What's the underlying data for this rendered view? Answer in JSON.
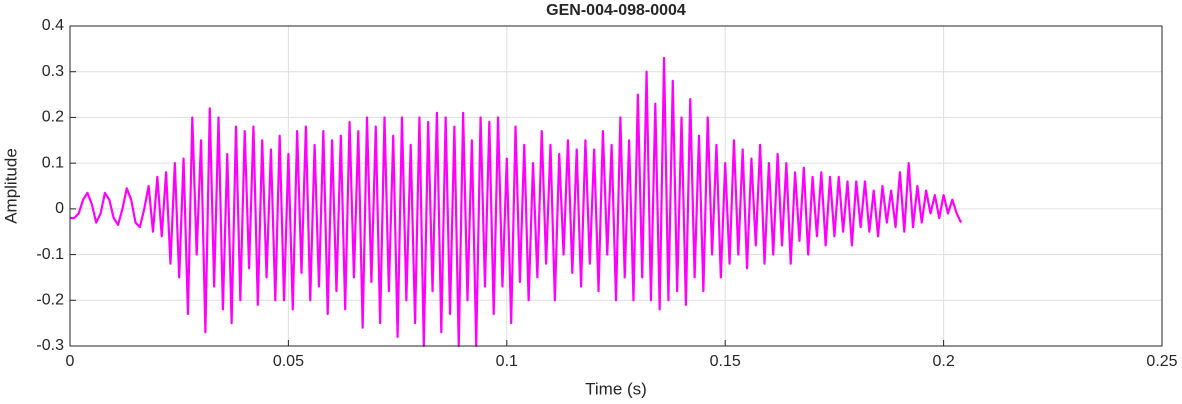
{
  "chart_data": {
    "type": "line",
    "title": "GEN-004-098-0004",
    "x_label": "Time (s)",
    "y_label": "Amplitude",
    "color": "#ff00ff",
    "grid": true,
    "xlim": [
      0,
      0.25
    ],
    "xticks": [
      0,
      0.05,
      0.1,
      0.15,
      0.2,
      0.25
    ],
    "ylim": [
      -0.3,
      0.4
    ],
    "yticks": [
      -0.3,
      -0.2,
      -0.1,
      0,
      0.1,
      0.2,
      0.3,
      0.4
    ],
    "x": [
      0,
      0.001,
      0.002,
      0.003,
      0.004,
      0.005,
      0.006,
      0.007,
      0.008,
      0.009,
      0.01,
      0.011,
      0.012,
      0.013,
      0.014,
      0.015,
      0.016,
      0.017,
      0.018,
      0.019,
      0.02,
      0.021,
      0.022,
      0.023,
      0.024,
      0.025,
      0.026,
      0.027,
      0.028,
      0.029,
      0.03,
      0.031,
      0.032,
      0.033,
      0.034,
      0.035,
      0.036,
      0.037,
      0.038,
      0.039,
      0.04,
      0.041,
      0.042,
      0.043,
      0.044,
      0.045,
      0.046,
      0.047,
      0.048,
      0.049,
      0.05,
      0.051,
      0.052,
      0.053,
      0.054,
      0.055,
      0.056,
      0.057,
      0.058,
      0.059,
      0.06,
      0.061,
      0.062,
      0.063,
      0.064,
      0.065,
      0.066,
      0.067,
      0.068,
      0.069,
      0.07,
      0.071,
      0.072,
      0.073,
      0.074,
      0.075,
      0.076,
      0.077,
      0.078,
      0.079,
      0.08,
      0.081,
      0.082,
      0.083,
      0.084,
      0.085,
      0.086,
      0.087,
      0.088,
      0.089,
      0.09,
      0.091,
      0.092,
      0.093,
      0.094,
      0.095,
      0.096,
      0.097,
      0.098,
      0.099,
      0.1,
      0.101,
      0.102,
      0.103,
      0.104,
      0.105,
      0.106,
      0.107,
      0.108,
      0.109,
      0.11,
      0.111,
      0.112,
      0.113,
      0.114,
      0.115,
      0.116,
      0.117,
      0.118,
      0.119,
      0.12,
      0.121,
      0.122,
      0.123,
      0.124,
      0.125,
      0.126,
      0.127,
      0.128,
      0.129,
      0.13,
      0.131,
      0.132,
      0.133,
      0.134,
      0.135,
      0.136,
      0.137,
      0.138,
      0.139,
      0.14,
      0.141,
      0.142,
      0.143,
      0.144,
      0.145,
      0.146,
      0.147,
      0.148,
      0.149,
      0.15,
      0.151,
      0.152,
      0.153,
      0.154,
      0.155,
      0.156,
      0.157,
      0.158,
      0.159,
      0.16,
      0.161,
      0.162,
      0.163,
      0.164,
      0.165,
      0.166,
      0.167,
      0.168,
      0.169,
      0.17,
      0.171,
      0.172,
      0.173,
      0.174,
      0.175,
      0.176,
      0.177,
      0.178,
      0.179,
      0.18,
      0.181,
      0.182,
      0.183,
      0.184,
      0.185,
      0.186,
      0.187,
      0.188,
      0.189,
      0.19,
      0.191,
      0.192,
      0.193,
      0.194,
      0.195,
      0.196,
      0.197,
      0.198,
      0.199,
      0.2,
      0.201,
      0.202,
      0.203,
      0.204
    ],
    "values": [
      -0.02,
      -0.02,
      -0.01,
      0.02,
      0.035,
      0.01,
      -0.03,
      -0.01,
      0.035,
      0.02,
      -0.02,
      -0.035,
      0.0,
      0.045,
      0.02,
      -0.03,
      -0.04,
      0.0,
      0.05,
      -0.05,
      0.07,
      -0.06,
      0.08,
      -0.12,
      0.1,
      -0.15,
      0.11,
      -0.23,
      0.2,
      -0.1,
      0.15,
      -0.27,
      0.22,
      -0.17,
      0.2,
      -0.22,
      0.12,
      -0.25,
      0.18,
      -0.2,
      0.17,
      -0.13,
      0.18,
      -0.21,
      0.15,
      -0.15,
      0.13,
      -0.2,
      0.16,
      -0.2,
      0.12,
      -0.22,
      0.17,
      -0.14,
      0.18,
      -0.2,
      0.14,
      -0.17,
      0.17,
      -0.23,
      0.15,
      -0.18,
      0.16,
      -0.22,
      0.19,
      -0.15,
      0.17,
      -0.26,
      0.2,
      -0.16,
      0.18,
      -0.25,
      0.2,
      -0.18,
      0.16,
      -0.28,
      0.2,
      -0.2,
      0.14,
      -0.25,
      0.2,
      -0.3,
      0.19,
      -0.18,
      0.21,
      -0.27,
      0.2,
      -0.23,
      0.18,
      -0.3,
      0.21,
      -0.2,
      0.15,
      -0.3,
      0.2,
      -0.17,
      0.19,
      -0.23,
      0.2,
      -0.17,
      0.11,
      -0.25,
      0.18,
      -0.16,
      0.14,
      -0.2,
      0.1,
      -0.15,
      0.17,
      -0.12,
      0.14,
      -0.2,
      0.12,
      -0.1,
      0.15,
      -0.14,
      0.13,
      -0.17,
      0.15,
      -0.12,
      0.13,
      -0.18,
      0.17,
      -0.1,
      0.14,
      -0.2,
      0.2,
      -0.15,
      0.15,
      -0.2,
      0.25,
      -0.15,
      0.3,
      -0.2,
      0.23,
      -0.22,
      0.33,
      -0.2,
      0.28,
      -0.18,
      0.2,
      -0.21,
      0.24,
      -0.15,
      0.16,
      -0.18,
      0.2,
      -0.1,
      0.14,
      -0.15,
      0.1,
      -0.12,
      0.15,
      -0.1,
      0.13,
      -0.13,
      0.11,
      -0.08,
      0.14,
      -0.12,
      0.1,
      -0.1,
      0.12,
      -0.08,
      0.1,
      -0.12,
      0.08,
      -0.07,
      0.09,
      -0.1,
      0.07,
      -0.06,
      0.08,
      -0.08,
      0.07,
      -0.06,
      0.07,
      -0.05,
      0.06,
      -0.08,
      0.06,
      -0.04,
      0.06,
      -0.05,
      0.04,
      -0.06,
      0.05,
      -0.03,
      0.04,
      -0.04,
      0.08,
      -0.05,
      0.1,
      -0.04,
      0.05,
      -0.03,
      0.04,
      -0.01,
      0.03,
      -0.02,
      0.03,
      -0.01,
      0.02,
      -0.01,
      -0.03
    ]
  }
}
